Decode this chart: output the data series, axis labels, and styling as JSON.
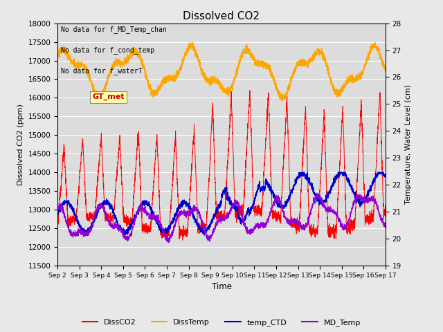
{
  "title": "Dissolved CO2",
  "xlabel": "Time",
  "ylabel_left": "Dissolved CO2 (ppm)",
  "ylabel_right": "Temperature, Water Level (cm)",
  "ylim_left": [
    11500,
    18000
  ],
  "ylim_right": [
    19.0,
    28.0
  ],
  "xtick_labels": [
    "Sep 2",
    "Sep 3",
    "Sep 4",
    "Sep 5",
    "Sep 6",
    "Sep 7",
    "Sep 8",
    "Sep 9",
    "Sep 10",
    "Sep 11",
    "Sep 12",
    "Sep 13",
    "Sep 14",
    "Sep 15",
    "Sep 16",
    "Sep 17"
  ],
  "annotations": [
    "No data for f_MD_Temp_chan",
    "No data for f_cond_temp",
    "No data for f_waterT"
  ],
  "legend_entries": [
    "DissCO2",
    "DissTemp",
    "temp_CTD",
    "MD_Temp"
  ],
  "legend_colors": [
    "#ff0000",
    "#ffa500",
    "#0000cd",
    "#9400d3"
  ],
  "GT_met_label": "GT_met",
  "GT_met_color": "#cc0000",
  "GT_met_bg": "#ffffaa",
  "background_color": "#e8e8e8",
  "plot_bg": "#dcdcdc",
  "grid_color": "#ffffff",
  "n_points": 3000
}
